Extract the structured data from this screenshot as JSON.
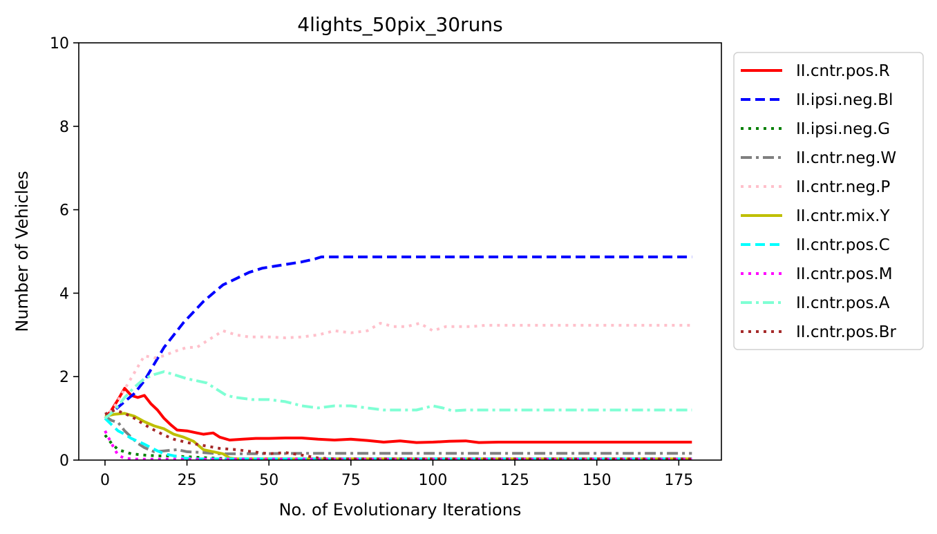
{
  "chart_data": {
    "type": "line",
    "title": "4lights_50pix_30runs",
    "xlabel": "No. of Evolutionary Iterations",
    "ylabel": "Number of Vehicles",
    "xlim": [
      -8,
      188
    ],
    "ylim": [
      0,
      10
    ],
    "xticks": [
      0,
      25,
      50,
      75,
      100,
      125,
      150,
      175
    ],
    "yticks": [
      0,
      2,
      4,
      6,
      8,
      10
    ],
    "grid": false,
    "legend_position": "outside-right-top",
    "series": [
      {
        "name": "II.cntr.pos.R",
        "color": "#ff0000",
        "style": "solid",
        "points": [
          [
            0,
            1.0
          ],
          [
            2,
            1.2
          ],
          [
            4,
            1.45
          ],
          [
            6,
            1.72
          ],
          [
            8,
            1.55
          ],
          [
            10,
            1.5
          ],
          [
            12,
            1.55
          ],
          [
            14,
            1.35
          ],
          [
            16,
            1.2
          ],
          [
            18,
            1.0
          ],
          [
            20,
            0.85
          ],
          [
            22,
            0.72
          ],
          [
            25,
            0.7
          ],
          [
            28,
            0.65
          ],
          [
            30,
            0.62
          ],
          [
            33,
            0.65
          ],
          [
            35,
            0.55
          ],
          [
            38,
            0.48
          ],
          [
            42,
            0.5
          ],
          [
            46,
            0.52
          ],
          [
            50,
            0.52
          ],
          [
            55,
            0.53
          ],
          [
            60,
            0.53
          ],
          [
            65,
            0.5
          ],
          [
            70,
            0.48
          ],
          [
            75,
            0.5
          ],
          [
            80,
            0.47
          ],
          [
            85,
            0.43
          ],
          [
            90,
            0.46
          ],
          [
            95,
            0.42
          ],
          [
            100,
            0.43
          ],
          [
            105,
            0.45
          ],
          [
            110,
            0.46
          ],
          [
            114,
            0.42
          ],
          [
            120,
            0.43
          ],
          [
            140,
            0.43
          ],
          [
            160,
            0.43
          ],
          [
            179,
            0.43
          ]
        ]
      },
      {
        "name": "II.ipsi.neg.Bl",
        "color": "#0000ff",
        "style": "dashed",
        "points": [
          [
            0,
            1.0
          ],
          [
            3,
            1.2
          ],
          [
            6,
            1.4
          ],
          [
            9,
            1.6
          ],
          [
            12,
            1.9
          ],
          [
            15,
            2.3
          ],
          [
            18,
            2.7
          ],
          [
            21,
            3.0
          ],
          [
            24,
            3.3
          ],
          [
            27,
            3.55
          ],
          [
            30,
            3.8
          ],
          [
            33,
            4.0
          ],
          [
            36,
            4.2
          ],
          [
            40,
            4.35
          ],
          [
            44,
            4.5
          ],
          [
            48,
            4.6
          ],
          [
            52,
            4.65
          ],
          [
            56,
            4.7
          ],
          [
            60,
            4.75
          ],
          [
            64,
            4.82
          ],
          [
            66,
            4.87
          ],
          [
            80,
            4.87
          ],
          [
            100,
            4.87
          ],
          [
            120,
            4.87
          ],
          [
            150,
            4.87
          ],
          [
            179,
            4.87
          ]
        ]
      },
      {
        "name": "II.ipsi.neg.G",
        "color": "#008000",
        "style": "dotted",
        "points": [
          [
            0,
            0.6
          ],
          [
            2,
            0.4
          ],
          [
            4,
            0.25
          ],
          [
            6,
            0.2
          ],
          [
            8,
            0.15
          ],
          [
            12,
            0.12
          ],
          [
            16,
            0.1
          ],
          [
            20,
            0.1
          ],
          [
            25,
            0.08
          ],
          [
            30,
            0.06
          ],
          [
            35,
            0.04
          ],
          [
            40,
            0.03
          ],
          [
            50,
            0.03
          ],
          [
            100,
            0.03
          ],
          [
            179,
            0.03
          ]
        ]
      },
      {
        "name": "II.cntr.neg.W",
        "color": "#808080",
        "style": "dashdot",
        "points": [
          [
            0,
            1.05
          ],
          [
            2,
            0.95
          ],
          [
            4,
            0.9
          ],
          [
            6,
            0.7
          ],
          [
            8,
            0.55
          ],
          [
            10,
            0.4
          ],
          [
            12,
            0.3
          ],
          [
            15,
            0.2
          ],
          [
            18,
            0.22
          ],
          [
            22,
            0.25
          ],
          [
            25,
            0.2
          ],
          [
            30,
            0.18
          ],
          [
            35,
            0.15
          ],
          [
            40,
            0.15
          ],
          [
            60,
            0.16
          ],
          [
            100,
            0.16
          ],
          [
            140,
            0.16
          ],
          [
            179,
            0.16
          ]
        ]
      },
      {
        "name": "II.cntr.neg.P",
        "color": "#ffc0cb",
        "style": "dotted",
        "points": [
          [
            0,
            1.0
          ],
          [
            3,
            1.3
          ],
          [
            6,
            1.7
          ],
          [
            9,
            2.1
          ],
          [
            12,
            2.5
          ],
          [
            15,
            2.45
          ],
          [
            18,
            2.5
          ],
          [
            21,
            2.6
          ],
          [
            25,
            2.7
          ],
          [
            28,
            2.7
          ],
          [
            32,
            2.9
          ],
          [
            36,
            3.1
          ],
          [
            40,
            3.0
          ],
          [
            44,
            2.95
          ],
          [
            50,
            2.95
          ],
          [
            55,
            2.93
          ],
          [
            60,
            2.95
          ],
          [
            65,
            3.0
          ],
          [
            70,
            3.1
          ],
          [
            75,
            3.05
          ],
          [
            80,
            3.1
          ],
          [
            84,
            3.28
          ],
          [
            88,
            3.2
          ],
          [
            92,
            3.2
          ],
          [
            96,
            3.28
          ],
          [
            100,
            3.1
          ],
          [
            104,
            3.2
          ],
          [
            108,
            3.2
          ],
          [
            112,
            3.2
          ],
          [
            116,
            3.23
          ],
          [
            130,
            3.23
          ],
          [
            150,
            3.23
          ],
          [
            179,
            3.23
          ]
        ]
      },
      {
        "name": "II.cntr.mix.Y",
        "color": "#bfbf00",
        "style": "solid",
        "points": [
          [
            0,
            1.05
          ],
          [
            3,
            1.1
          ],
          [
            6,
            1.12
          ],
          [
            9,
            1.05
          ],
          [
            12,
            0.92
          ],
          [
            15,
            0.82
          ],
          [
            18,
            0.75
          ],
          [
            21,
            0.62
          ],
          [
            24,
            0.55
          ],
          [
            27,
            0.45
          ],
          [
            30,
            0.25
          ],
          [
            33,
            0.2
          ],
          [
            36,
            0.15
          ],
          [
            38,
            0.05
          ],
          [
            40,
            0.03
          ],
          [
            60,
            0.03
          ],
          [
            100,
            0.03
          ],
          [
            179,
            0.03
          ]
        ]
      },
      {
        "name": "II.cntr.pos.C",
        "color": "#00ffff",
        "style": "dashed",
        "points": [
          [
            0,
            1.0
          ],
          [
            2,
            0.85
          ],
          [
            4,
            0.7
          ],
          [
            6,
            0.62
          ],
          [
            8,
            0.52
          ],
          [
            10,
            0.45
          ],
          [
            12,
            0.38
          ],
          [
            14,
            0.3
          ],
          [
            16,
            0.22
          ],
          [
            18,
            0.15
          ],
          [
            20,
            0.12
          ],
          [
            24,
            0.05
          ],
          [
            28,
            0.03
          ],
          [
            40,
            0.03
          ],
          [
            100,
            0.03
          ],
          [
            179,
            0.03
          ]
        ]
      },
      {
        "name": "II.cntr.pos.M",
        "color": "#ff00ff",
        "style": "dotted",
        "points": [
          [
            0,
            0.7
          ],
          [
            1,
            0.55
          ],
          [
            2,
            0.4
          ],
          [
            3,
            0.25
          ],
          [
            4,
            0.12
          ],
          [
            6,
            0.04
          ],
          [
            10,
            0.02
          ],
          [
            40,
            0.02
          ],
          [
            100,
            0.02
          ],
          [
            179,
            0.02
          ]
        ]
      },
      {
        "name": "II.cntr.pos.A",
        "color": "#7fffd4",
        "style": "dashdot",
        "points": [
          [
            0,
            1.0
          ],
          [
            3,
            1.2
          ],
          [
            6,
            1.5
          ],
          [
            9,
            1.75
          ],
          [
            12,
            1.95
          ],
          [
            15,
            2.05
          ],
          [
            18,
            2.12
          ],
          [
            21,
            2.05
          ],
          [
            25,
            1.95
          ],
          [
            28,
            1.9
          ],
          [
            31,
            1.85
          ],
          [
            34,
            1.7
          ],
          [
            37,
            1.55
          ],
          [
            40,
            1.5
          ],
          [
            45,
            1.45
          ],
          [
            50,
            1.45
          ],
          [
            55,
            1.4
          ],
          [
            60,
            1.3
          ],
          [
            65,
            1.25
          ],
          [
            70,
            1.3
          ],
          [
            75,
            1.3
          ],
          [
            80,
            1.25
          ],
          [
            85,
            1.2
          ],
          [
            90,
            1.2
          ],
          [
            95,
            1.2
          ],
          [
            100,
            1.3
          ],
          [
            103,
            1.25
          ],
          [
            106,
            1.18
          ],
          [
            110,
            1.2
          ],
          [
            115,
            1.2
          ],
          [
            130,
            1.2
          ],
          [
            150,
            1.2
          ],
          [
            179,
            1.2
          ]
        ]
      },
      {
        "name": "II.cntr.pos.Br",
        "color": "#a52a2a",
        "style": "dotted",
        "points": [
          [
            0,
            1.1
          ],
          [
            3,
            1.2
          ],
          [
            6,
            1.12
          ],
          [
            9,
            1.0
          ],
          [
            12,
            0.85
          ],
          [
            15,
            0.72
          ],
          [
            18,
            0.6
          ],
          [
            21,
            0.5
          ],
          [
            25,
            0.42
          ],
          [
            30,
            0.35
          ],
          [
            35,
            0.28
          ],
          [
            40,
            0.25
          ],
          [
            45,
            0.2
          ],
          [
            50,
            0.15
          ],
          [
            55,
            0.18
          ],
          [
            60,
            0.12
          ],
          [
            65,
            0.05
          ],
          [
            70,
            0.03
          ],
          [
            100,
            0.03
          ],
          [
            179,
            0.03
          ]
        ]
      }
    ]
  }
}
